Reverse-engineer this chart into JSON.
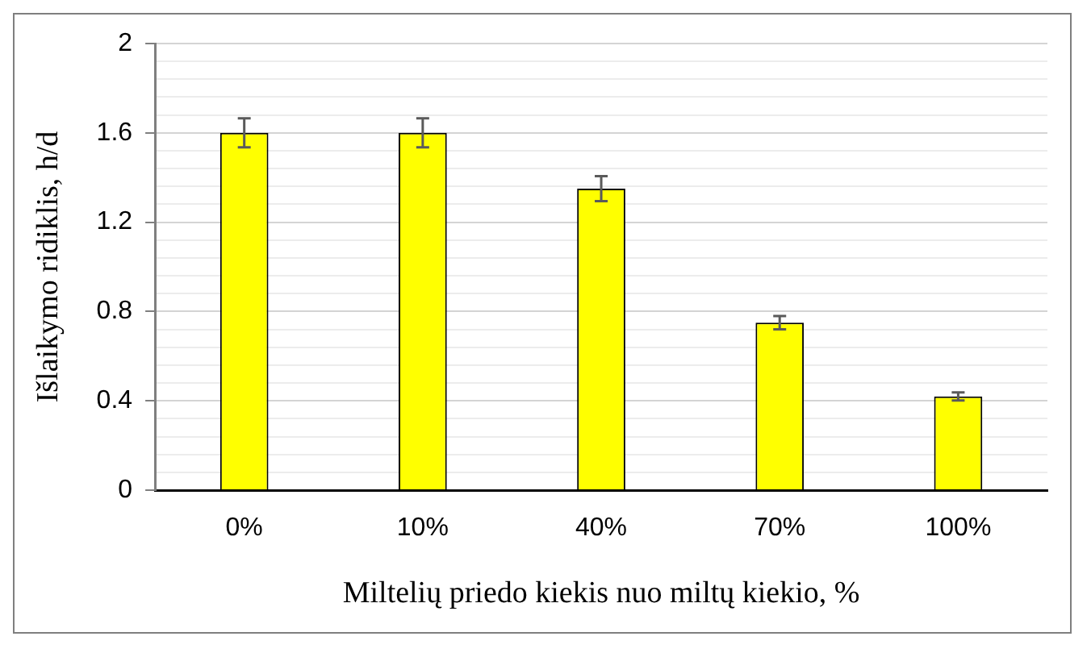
{
  "chart_data": {
    "type": "bar",
    "xlabel": "Miltelių priedo kiekis nuo miltų kiekio, %",
    "ylabel": "Išlaikymo ridiklis, h/d",
    "categories": [
      "0%",
      "10%",
      "40%",
      "70%",
      "100%"
    ],
    "values": [
      1.6,
      1.6,
      1.35,
      0.75,
      0.42
    ],
    "errors": [
      0.065,
      0.065,
      0.056,
      0.03,
      0.018
    ],
    "color": "#ffff00",
    "ylim": [
      0,
      2
    ],
    "yticks": [
      0,
      {
        "value": 0.08,
        "label": null
      },
      {
        "value": 0.16,
        "label": null
      },
      {
        "value": 0.24,
        "label": null
      },
      {
        "value": 0.32,
        "label": null
      },
      0.4,
      {
        "value": 0.48,
        "label": null
      },
      {
        "value": 0.56,
        "label": null
      },
      {
        "value": 0.64,
        "label": null
      },
      {
        "value": 0.72,
        "label": null
      },
      0.8,
      {
        "value": 0.88,
        "label": null
      },
      {
        "value": 0.96,
        "label": null
      },
      {
        "value": 1.04,
        "label": null
      },
      {
        "value": 1.12,
        "label": null
      },
      1.2,
      {
        "value": 1.28,
        "label": null
      },
      {
        "value": 1.36,
        "label": null
      },
      {
        "value": 1.44,
        "label": null
      },
      {
        "value": 1.52,
        "label": null
      },
      1.6,
      {
        "value": 1.68,
        "label": null
      },
      {
        "value": 1.76,
        "label": null
      },
      {
        "value": 1.84,
        "label": null
      },
      {
        "value": 1.92,
        "label": null
      },
      2
    ],
    "grid": "y",
    "legend": false
  }
}
